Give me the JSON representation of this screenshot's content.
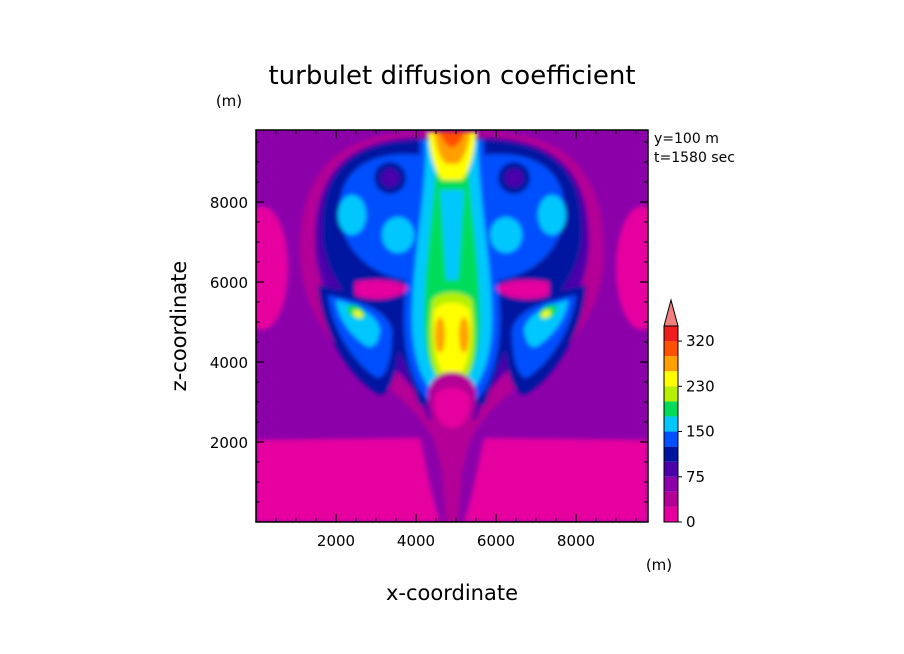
{
  "chart_data": {
    "type": "heatmap",
    "title": "turbulet diffusion coefficient",
    "xlabel": "x-coordinate",
    "ylabel": "z-coordinate",
    "x_unit": "(m)",
    "y_unit": "(m)",
    "annotations": [
      "y=100 m",
      "t=1580 sec"
    ],
    "xlim": [
      0,
      9800
    ],
    "ylim": [
      0,
      9800
    ],
    "x_ticks": [
      2000,
      4000,
      6000,
      8000
    ],
    "y_ticks": [
      2000,
      4000,
      6000,
      8000
    ],
    "colorbar": {
      "levels": [
        0,
        25,
        50,
        75,
        100,
        125,
        150,
        175,
        200,
        230,
        260,
        290,
        320
      ],
      "labels": [
        "0",
        "75",
        "150",
        "230",
        "320"
      ],
      "colors": [
        "#e600a0",
        "#b40096",
        "#8c00aa",
        "#4b00aa",
        "#0014a0",
        "#0050ff",
        "#00c8ff",
        "#00dc5a",
        "#b4f000",
        "#ffff00",
        "#ffa000",
        "#ff5000",
        "#f01e1e"
      ],
      "extend_color": "#f08080"
    },
    "features": [
      {
        "x": 5000,
        "z": 9700,
        "value": 300
      },
      {
        "x": 5000,
        "z": 9000,
        "value": 240
      },
      {
        "x": 4850,
        "z": 7800,
        "value": 165
      },
      {
        "x": 4600,
        "z": 4600,
        "value": 260
      },
      {
        "x": 5400,
        "z": 4600,
        "value": 260
      },
      {
        "x": 2600,
        "z": 5300,
        "value": 220
      },
      {
        "x": 7400,
        "z": 5300,
        "value": 220
      },
      {
        "x": 2600,
        "z": 7800,
        "value": 145
      },
      {
        "x": 7400,
        "z": 7800,
        "value": 145
      },
      {
        "x": 3000,
        "z": 8600,
        "value": 75
      },
      {
        "x": 7000,
        "z": 8600,
        "value": 75
      },
      {
        "x": 5000,
        "z": 2800,
        "value": 40
      },
      {
        "x": 1000,
        "z": 1200,
        "value": 10
      },
      {
        "x": 9000,
        "z": 1200,
        "value": 10
      },
      {
        "x": 500,
        "z": 7000,
        "value": 10
      },
      {
        "x": 9500,
        "z": 7000,
        "value": 10
      }
    ]
  }
}
